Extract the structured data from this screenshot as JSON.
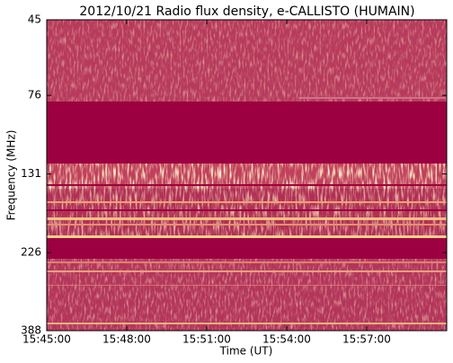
{
  "chart_data": {
    "type": "spectrogram",
    "title": "2012/10/21  Radio flux density, e-CALLISTO (HUMAIN)",
    "x_label": "Time (UT)",
    "y_label": "Frequency (MHz)",
    "xlim": [
      "15:45:00",
      "16:00:00"
    ],
    "xticks": [
      "15:45:00",
      "15:48:00",
      "15:51:00",
      "15:54:00",
      "15:57:00"
    ],
    "ylim": [
      45,
      388
    ],
    "yticks": [
      45,
      76,
      131,
      226,
      388
    ],
    "y_log": true,
    "y_inverted": true
  }
}
